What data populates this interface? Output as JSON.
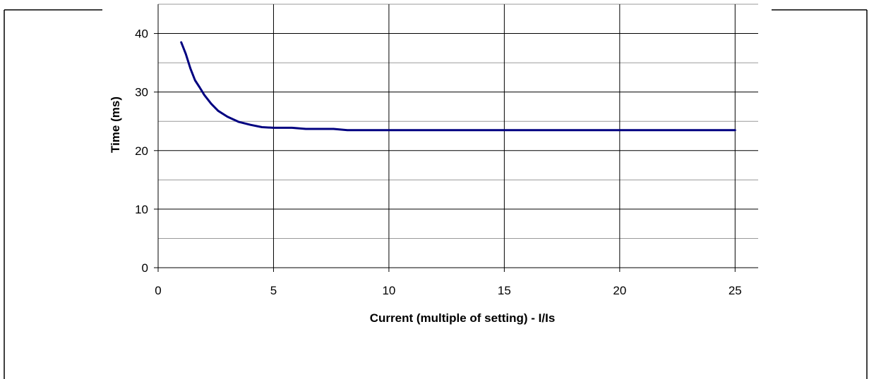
{
  "chart_data": {
    "type": "line",
    "title": "",
    "xlabel": "Current (multiple of setting) - I/Is",
    "ylabel": "Time (ms)",
    "xlim": [
      0,
      26
    ],
    "ylim": [
      0,
      45
    ],
    "x_ticks": [
      0,
      5,
      10,
      15,
      20,
      25
    ],
    "x_tick_labels": [
      "0",
      "5",
      "10",
      "15",
      "20",
      "25"
    ],
    "y_ticks": [
      0,
      10,
      20,
      30,
      40
    ],
    "y_tick_labels": [
      "0",
      "10",
      "20",
      "30",
      "40"
    ],
    "y_minor_gridlines": [
      5,
      15,
      25,
      35,
      45
    ],
    "grid": true,
    "legend": "none",
    "series": [
      {
        "color": "#000080",
        "x": [
          1.0,
          1.2,
          1.4,
          1.6,
          1.8,
          2.0,
          2.3,
          2.6,
          3.0,
          3.5,
          4.0,
          4.5,
          5.0,
          5.8,
          6.4,
          7.0,
          7.6,
          8.2,
          9.0,
          10,
          15,
          20,
          25
        ],
        "y": [
          38.5,
          36.5,
          34.0,
          32.0,
          30.8,
          29.5,
          28.0,
          26.8,
          25.8,
          24.9,
          24.4,
          24.0,
          23.9,
          23.9,
          23.7,
          23.7,
          23.7,
          23.5,
          23.5,
          23.5,
          23.5,
          23.5,
          23.5
        ]
      }
    ]
  }
}
